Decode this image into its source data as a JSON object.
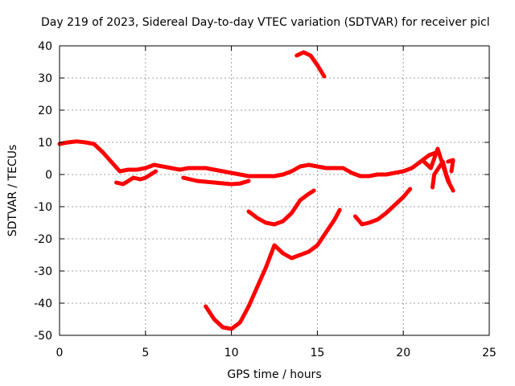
{
  "chart_data": {
    "type": "line",
    "title": "Day 219 of 2023, Sidereal Day-to-day VTEC variation (SDTVAR) for receiver picl",
    "xlabel": "GPS time / hours",
    "ylabel": "SDTVAR / TECUs",
    "xlim": [
      0,
      25
    ],
    "ylim": [
      -50,
      40
    ],
    "xticks": [
      0,
      5,
      10,
      15,
      20,
      25
    ],
    "yticks": [
      -50,
      -40,
      -30,
      -20,
      -10,
      0,
      10,
      20,
      30,
      40
    ],
    "grid": true,
    "color": "#ff0000",
    "series": [
      {
        "name": "main-trace",
        "points": [
          [
            0,
            9.5
          ],
          [
            0.5,
            10
          ],
          [
            1,
            10.3
          ],
          [
            1.5,
            10
          ],
          [
            2,
            9.5
          ],
          [
            2.5,
            7
          ],
          [
            3,
            4
          ],
          [
            3.5,
            1
          ],
          [
            4,
            1.5
          ],
          [
            4.5,
            1.5
          ],
          [
            5,
            2
          ],
          [
            5.5,
            3
          ],
          [
            6,
            2.5
          ],
          [
            6.5,
            2
          ],
          [
            7,
            1.5
          ],
          [
            7.5,
            2
          ],
          [
            8,
            2
          ],
          [
            8.5,
            2
          ],
          [
            9,
            1.5
          ],
          [
            9.5,
            1
          ],
          [
            10,
            0.5
          ],
          [
            10.5,
            0
          ],
          [
            11,
            -0.5
          ],
          [
            11.5,
            -0.5
          ],
          [
            12,
            -0.5
          ],
          [
            12.5,
            -0.5
          ],
          [
            13,
            0
          ],
          [
            13.5,
            1
          ],
          [
            14,
            2.5
          ],
          [
            14.5,
            3
          ],
          [
            15,
            2.5
          ],
          [
            15.5,
            2
          ],
          [
            16,
            2
          ],
          [
            16.5,
            2
          ],
          [
            17,
            0.5
          ],
          [
            17.5,
            -0.5
          ],
          [
            18,
            -0.5
          ],
          [
            18.5,
            0
          ],
          [
            19,
            0
          ],
          [
            19.5,
            0.5
          ],
          [
            20,
            1
          ],
          [
            20.5,
            2
          ],
          [
            21,
            4
          ],
          [
            21.5,
            6
          ],
          [
            22,
            7
          ]
        ]
      },
      {
        "name": "low-branch",
        "points": [
          [
            3.3,
            -2.5
          ],
          [
            3.7,
            -3
          ],
          [
            4,
            -2
          ],
          [
            4.3,
            -1
          ],
          [
            4.7,
            -1.5
          ],
          [
            5,
            -1
          ],
          [
            5.3,
            0
          ],
          [
            5.6,
            1
          ]
        ]
      },
      {
        "name": "mid-branch",
        "points": [
          [
            7.2,
            -1
          ],
          [
            8,
            -2
          ],
          [
            9,
            -2.5
          ],
          [
            10,
            -3
          ],
          [
            10.5,
            -2.8
          ],
          [
            11,
            -2
          ]
        ]
      },
      {
        "name": "arc-upper",
        "points": [
          [
            11,
            -11.5
          ],
          [
            11.5,
            -13.5
          ],
          [
            12,
            -15
          ],
          [
            12.5,
            -15.5
          ],
          [
            13,
            -14.5
          ],
          [
            13.5,
            -12
          ],
          [
            14,
            -8
          ],
          [
            14.5,
            -6
          ],
          [
            14.8,
            -5
          ]
        ]
      },
      {
        "name": "arc-lower",
        "points": [
          [
            8.5,
            -41
          ],
          [
            9,
            -45
          ],
          [
            9.5,
            -47.5
          ],
          [
            10,
            -48
          ],
          [
            10.5,
            -46
          ],
          [
            11,
            -41
          ],
          [
            11.5,
            -35
          ],
          [
            12,
            -29
          ],
          [
            12.5,
            -22
          ],
          [
            13,
            -24.5
          ],
          [
            13.5,
            -26
          ],
          [
            14,
            -25
          ],
          [
            14.5,
            -24
          ],
          [
            15,
            -22
          ],
          [
            15.5,
            -18
          ],
          [
            16,
            -14
          ],
          [
            16.3,
            -11
          ]
        ]
      },
      {
        "name": "right-branch",
        "points": [
          [
            17.2,
            -13
          ],
          [
            17.6,
            -15.5
          ],
          [
            18,
            -15
          ],
          [
            18.5,
            -14
          ],
          [
            19,
            -12
          ],
          [
            19.5,
            -9.5
          ],
          [
            20,
            -7
          ],
          [
            20.4,
            -4.5
          ]
        ]
      },
      {
        "name": "spike",
        "points": [
          [
            21.2,
            4
          ],
          [
            21.6,
            2
          ],
          [
            22,
            8
          ],
          [
            22.3,
            3
          ],
          [
            22.6,
            -2
          ],
          [
            22.9,
            -5
          ],
          [
            22.7,
            -3
          ],
          [
            22.5,
            0
          ],
          [
            22.3,
            4
          ],
          [
            21.8,
            0
          ],
          [
            21.7,
            -4
          ]
        ]
      },
      {
        "name": "right-tail",
        "points": [
          [
            22.6,
            4
          ],
          [
            22.9,
            4.5
          ],
          [
            22.8,
            1
          ]
        ]
      },
      {
        "name": "top-arc",
        "points": [
          [
            13.8,
            37
          ],
          [
            14.2,
            38
          ],
          [
            14.6,
            37
          ],
          [
            15,
            34
          ],
          [
            15.4,
            30.5
          ]
        ]
      }
    ]
  }
}
